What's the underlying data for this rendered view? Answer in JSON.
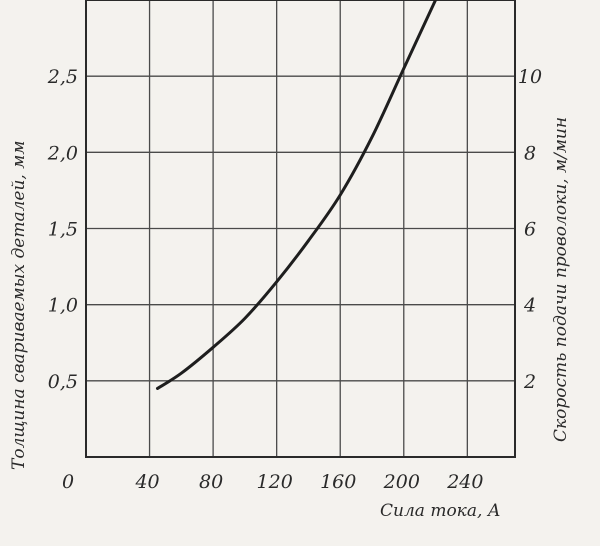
{
  "chart_data": {
    "type": "line",
    "xlabel": "Сила тока, А",
    "ylabel_left": "Толщина свариваемых деталей, мм",
    "ylabel_right": "Скорость подачи проволоки, м/мин",
    "xlim": [
      0,
      270
    ],
    "ylim_left": [
      0.0,
      3.0
    ],
    "ylim_right": [
      0,
      12
    ],
    "x_ticks": [
      "0",
      "40",
      "80",
      "120",
      "160",
      "200",
      "240"
    ],
    "y_left_ticks": [
      "0,5",
      "1,0",
      "1,5",
      "2,0",
      "2,5"
    ],
    "y_right_ticks": [
      "2",
      "4",
      "6",
      "8",
      "10"
    ],
    "grid": true,
    "series": [
      {
        "x": [
          45,
          60,
          80,
          100,
          120,
          140,
          160,
          180,
          200,
          220
        ],
        "y": [
          0.45,
          0.55,
          0.72,
          0.91,
          1.15,
          1.42,
          1.72,
          2.1,
          2.55,
          3.0
        ]
      }
    ]
  }
}
